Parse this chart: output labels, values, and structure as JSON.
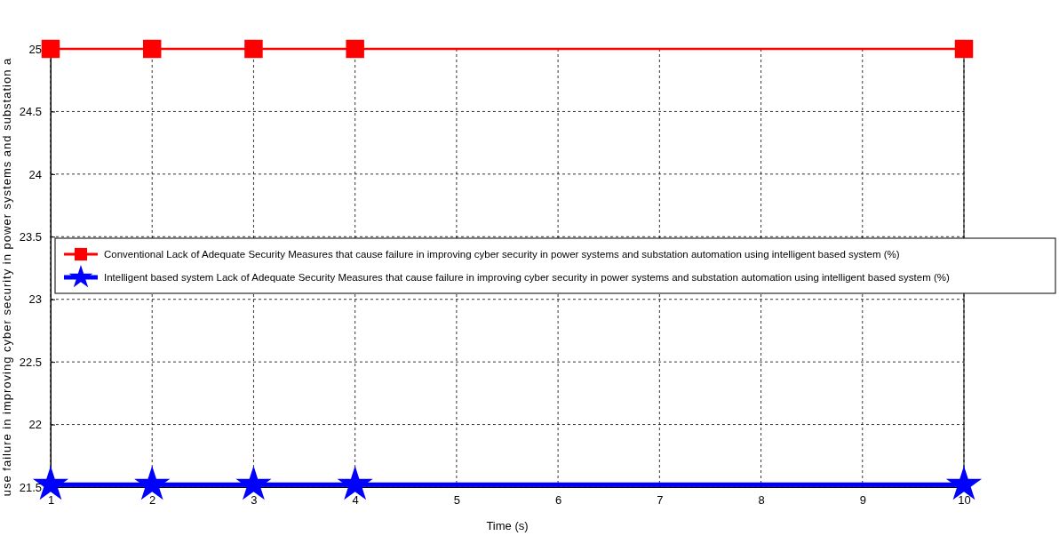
{
  "chart_data": {
    "type": "line",
    "xlabel": "Time (s)",
    "ylabel": "use failure in improving cyber security in power systems and substation a",
    "x": [
      1,
      2,
      3,
      4,
      10
    ],
    "series": [
      {
        "name": "Conventional Lack of Adequate Security Measures that cause failure in improving cyber security in power systems and substation automation using intelligent based system (%)",
        "color": "#ff0000",
        "marker": "square",
        "values": [
          25,
          25,
          25,
          25,
          25
        ]
      },
      {
        "name": "Intelligent based system Lack of Adequate Security Measures that cause failure in improving cyber security in power systems and substation automation using intelligent based system (%)",
        "color": "#0000ff",
        "marker": "star",
        "values": [
          21.52,
          21.52,
          21.52,
          21.52,
          21.52
        ]
      }
    ],
    "xlim": [
      1,
      10
    ],
    "xticks": [
      1,
      2,
      3,
      4,
      5,
      6,
      7,
      8,
      9,
      10
    ],
    "ylim": [
      21.5,
      25
    ],
    "yticks": [
      21.5,
      22,
      22.5,
      23,
      23.5,
      24,
      24.5,
      25
    ],
    "grid": true,
    "legend": "left",
    "line_style": "solid"
  }
}
